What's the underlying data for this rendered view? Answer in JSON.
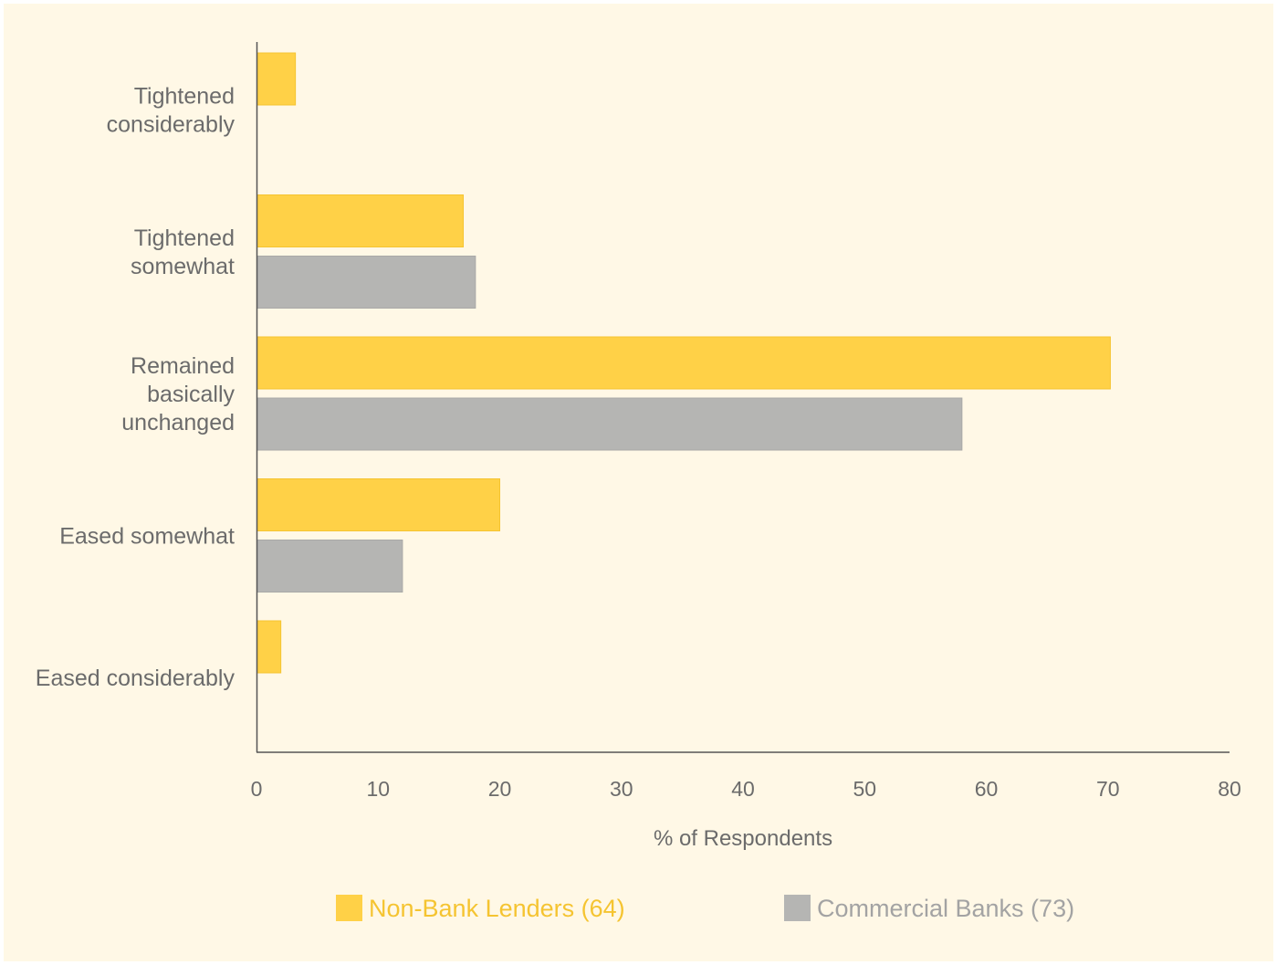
{
  "chart_data": {
    "type": "bar",
    "orientation": "horizontal",
    "categories": [
      [
        "Tightened",
        "considerably"
      ],
      [
        "Tightened",
        "somewhat"
      ],
      [
        "Remained",
        "basically",
        "unchanged"
      ],
      [
        "Eased somewhat"
      ],
      [
        "Eased considerably"
      ]
    ],
    "series": [
      {
        "name": "Non-Bank Lenders (64)",
        "color": "#ffd147",
        "values": [
          3.2,
          17,
          70.2,
          20,
          2
        ]
      },
      {
        "name": "Commercial Banks (73)",
        "color": "#b5b5b3",
        "values": [
          0,
          18,
          58,
          12,
          0
        ]
      }
    ],
    "xlabel": "% of Respondents",
    "xlim": [
      0,
      80
    ],
    "xticks": [
      0,
      10,
      20,
      30,
      40,
      50,
      60,
      70,
      80
    ],
    "grid": false,
    "legend_position": "bottom"
  }
}
